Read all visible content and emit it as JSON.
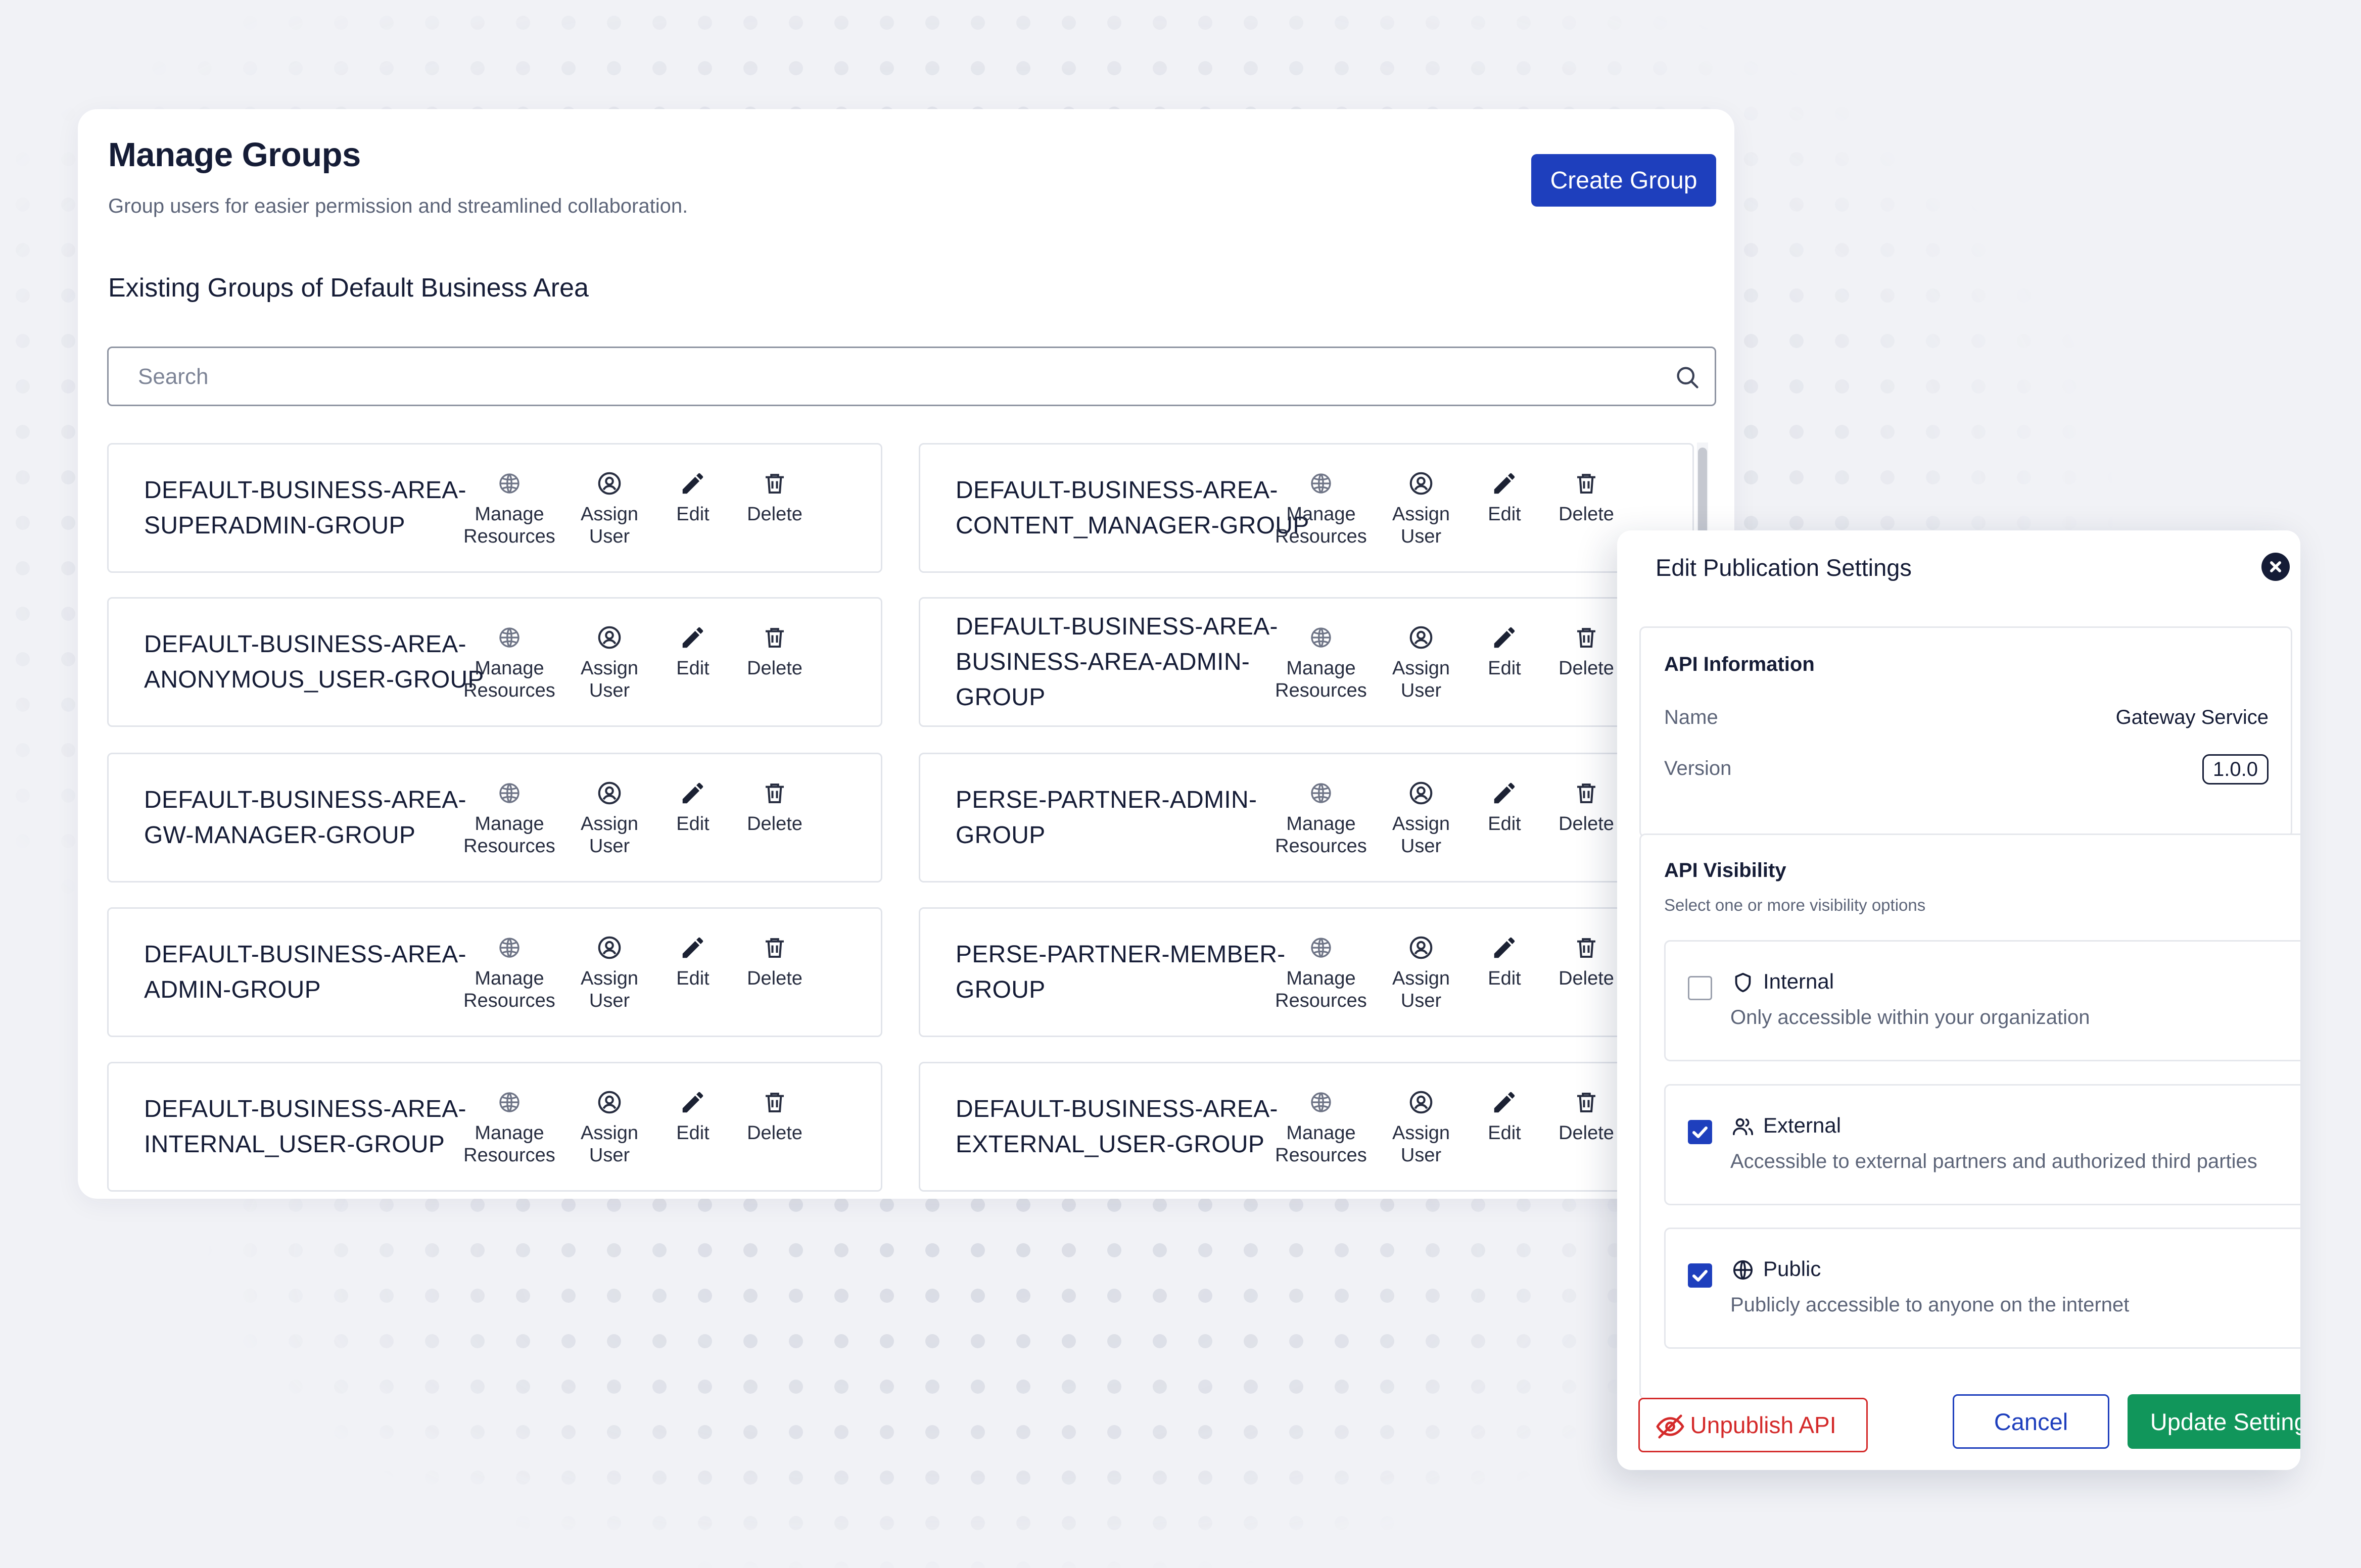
{
  "manage_groups": {
    "title": "Manage Groups",
    "subtitle": "Group users for easier permission and streamlined collaboration.",
    "create_button": "Create Group",
    "section_heading": "Existing Groups of Default Business Area",
    "search_placeholder": "Search",
    "search_value": "",
    "actions": {
      "manage_resources": "Manage\nResources",
      "assign_user": "Assign\nUser",
      "edit": "Edit",
      "delete": "Delete"
    },
    "groups": [
      {
        "name": "DEFAULT-BUSINESS-AREA-\nSUPERADMIN-GROUP"
      },
      {
        "name": "DEFAULT-BUSINESS-AREA-\nANONYMOUS_USER-GROUP"
      },
      {
        "name": "DEFAULT-BUSINESS-AREA-\nGW-MANAGER-GROUP"
      },
      {
        "name": "DEFAULT-BUSINESS-AREA-\nADMIN-GROUP"
      },
      {
        "name": "DEFAULT-BUSINESS-AREA-\nINTERNAL_USER-GROUP"
      },
      {
        "name": "DEFAULT-BUSINESS-AREA-\nCONTENT_MANAGER-GROUP"
      },
      {
        "name": "DEFAULT-BUSINESS-AREA-\nBUSINESS-AREA-ADMIN-\nGROUP"
      },
      {
        "name": "PERSE-PARTNER-ADMIN-\nGROUP"
      },
      {
        "name": "PERSE-PARTNER-MEMBER-\nGROUP"
      },
      {
        "name": "DEFAULT-BUSINESS-AREA-\nEXTERNAL_USER-GROUP"
      }
    ]
  },
  "modal": {
    "title": "Edit Publication Settings",
    "api_info": {
      "heading": "API Information",
      "name_label": "Name",
      "name_value": "Gateway Service",
      "version_label": "Version",
      "version_value": "1.0.0"
    },
    "visibility": {
      "heading": "API Visibility",
      "hint": "Select one or more visibility options",
      "options": [
        {
          "title": "Internal",
          "desc": "Only accessible within your organization",
          "checked": false,
          "icon": "shield-icon"
        },
        {
          "title": "External",
          "desc": "Accessible to external partners and authorized third parties",
          "checked": true,
          "icon": "users-icon"
        },
        {
          "title": "Public",
          "desc": "Publicly accessible to anyone on the internet",
          "checked": true,
          "icon": "globe-icon"
        }
      ]
    },
    "buttons": {
      "unpublish": "Unpublish API",
      "cancel": "Cancel",
      "update": "Update Settings"
    }
  },
  "colors": {
    "primary": "#1e3fbd",
    "success": "#11965b",
    "danger": "#d42a2a",
    "heading_text": "#151c36",
    "muted_text": "#5c6478"
  }
}
